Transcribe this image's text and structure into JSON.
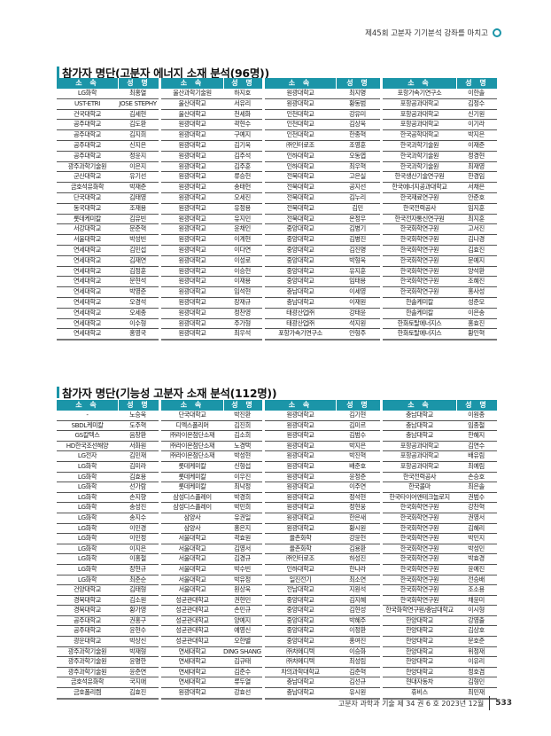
{
  "running_head": "제45회 고분자 기기분석 강좌를 마치고",
  "accent_color": "#1b95a8",
  "header_labels": {
    "affiliation": "소 속",
    "name": "성 명"
  },
  "tables": [
    {
      "title": "참가자 명단(고분자 에너지 소재 분석(96명))",
      "groups": [
        [
          [
            "LG화학",
            "최홍열"
          ],
          [
            "UST-ETRI",
            "JOSE STEPHY"
          ],
          [
            "건국대학교",
            "김세현"
          ],
          [
            "공주대학교",
            "김도환"
          ],
          [
            "공주대학교",
            "김지희"
          ],
          [
            "공주대학교",
            "신지은"
          ],
          [
            "공주대학교",
            "정윤지"
          ],
          [
            "광주과학기술원",
            "이은지"
          ],
          [
            "군산대학교",
            "유기선"
          ],
          [
            "금호석유화학",
            "박재준"
          ],
          [
            "단국대학교",
            "김태영"
          ],
          [
            "동국대학교",
            "조재용"
          ],
          [
            "롯데케미칼",
            "김유빈"
          ],
          [
            "서강대학교",
            "문준혁"
          ],
          [
            "서울대학교",
            "박성빈"
          ],
          [
            "연세대학교",
            "김민섭"
          ],
          [
            "연세대학교",
            "김재연"
          ],
          [
            "연세대학교",
            "김정훈"
          ],
          [
            "연세대학교",
            "문현석"
          ],
          [
            "연세대학교",
            "박영준"
          ],
          [
            "연세대학교",
            "오경석"
          ],
          [
            "연세대학교",
            "오세종"
          ],
          [
            "연세대학교",
            "이수형"
          ],
          [
            "연세대학교",
            "홍영국"
          ]
        ],
        [
          [
            "울산과학기술원",
            "하지호"
          ],
          [
            "울산대학교",
            "서유리"
          ],
          [
            "울산대학교",
            "천세화"
          ],
          [
            "원광대학교",
            "곽현수"
          ],
          [
            "원광대학교",
            "구예지"
          ],
          [
            "원광대학교",
            "김기욱"
          ],
          [
            "원광대학교",
            "김주석"
          ],
          [
            "원광대학교",
            "김주훈"
          ],
          [
            "원광대학교",
            "류승헌"
          ],
          [
            "원광대학교",
            "송태헌"
          ],
          [
            "원광대학교",
            "오세진"
          ],
          [
            "원광대학교",
            "유정용"
          ],
          [
            "원광대학교",
            "유지민"
          ],
          [
            "원광대학교",
            "윤채인"
          ],
          [
            "원광대학교",
            "이계현"
          ],
          [
            "원광대학교",
            "이다연"
          ],
          [
            "원광대학교",
            "이성로"
          ],
          [
            "원광대학교",
            "이승헌"
          ],
          [
            "원광대학교",
            "이재용"
          ],
          [
            "원광대학교",
            "임석현"
          ],
          [
            "원광대학교",
            "장재규"
          ],
          [
            "원광대학교",
            "정찬영"
          ],
          [
            "원광대학교",
            "주가형"
          ],
          [
            "원광대학교",
            "최우석"
          ]
        ],
        [
          [
            "원광대학교",
            "최지명"
          ],
          [
            "원광대학교",
            "황동범"
          ],
          [
            "인천대학교",
            "강유미"
          ],
          [
            "인천대학교",
            "김상욱"
          ],
          [
            "인천대학교",
            "한종혁"
          ],
          [
            "㈜인터로조",
            "조영훈"
          ],
          [
            "인하대학교",
            "오동엽"
          ],
          [
            "인하대학교",
            "최우혁"
          ],
          [
            "전북대학교",
            "고은실"
          ],
          [
            "전북대학교",
            "공지선"
          ],
          [
            "전북대학교",
            "김누리"
          ],
          [
            "전북대학교",
            "김민"
          ],
          [
            "전북대학교",
            "온정우"
          ],
          [
            "중앙대학교",
            "김병기"
          ],
          [
            "중앙대학교",
            "김병진"
          ],
          [
            "중앙대학교",
            "김진명"
          ],
          [
            "중앙대학교",
            "박형욱"
          ],
          [
            "중앙대학교",
            "유지훈"
          ],
          [
            "중앙대학교",
            "임태용"
          ],
          [
            "충남대학교",
            "이세영"
          ],
          [
            "충남대학교",
            "이재원"
          ],
          [
            "태광산업㈜",
            "강태윤"
          ],
          [
            "태광산업㈜",
            "석지원"
          ],
          [
            "포항가속기연구소",
            "안형주"
          ]
        ],
        [
          [
            "포항가속기연구소",
            "이한솔"
          ],
          [
            "포항공과대학교",
            "김정수"
          ],
          [
            "포항공과대학교",
            "신기원"
          ],
          [
            "포항공과대학교",
            "이기라"
          ],
          [
            "한국공학대학교",
            "박지은"
          ],
          [
            "한국과학기술원",
            "이재준"
          ],
          [
            "한국과학기술원",
            "정경현"
          ],
          [
            "한국과학기술원",
            "최재영"
          ],
          [
            "한국생산기술연구원",
            "한경임"
          ],
          [
            "한국에너지공과대학교",
            "서채은"
          ],
          [
            "한국재료연구원",
            "안준호"
          ],
          [
            "한국전력공사",
            "임지훈"
          ],
          [
            "한국전자통신연구원",
            "최지훈"
          ],
          [
            "한국화학연구원",
            "고서진"
          ],
          [
            "한국화학연구원",
            "김나경"
          ],
          [
            "한국화학연구원",
            "김효진"
          ],
          [
            "한국화학연구원",
            "문예지"
          ],
          [
            "한국화학연구원",
            "양석환"
          ],
          [
            "한국화학연구원",
            "조혜진"
          ],
          [
            "한국화학연구원",
            "홍사성"
          ],
          [
            "한솔케미칼",
            "성준모"
          ],
          [
            "한솔케미칼",
            "이은송"
          ],
          [
            "한화토탈에너지스",
            "홍효진"
          ],
          [
            "한화토탈에너지스",
            "황인혁"
          ]
        ]
      ]
    },
    {
      "title": "참가자 명단(기능성 고분자 소재 분석(112명))",
      "groups": [
        [
          [
            "-",
            "노승욱"
          ],
          [
            "SBDL케미칼",
            "도주혁"
          ],
          [
            "GS칼텍스",
            "음창환"
          ],
          [
            "HD한국조선해양",
            "서화원"
          ],
          [
            "LG전자",
            "김민재"
          ],
          [
            "LG화학",
            "김미라"
          ],
          [
            "LG화학",
            "김효용"
          ],
          [
            "LG화학",
            "선가람"
          ],
          [
            "LG화학",
            "손지향"
          ],
          [
            "LG화학",
            "송성진"
          ],
          [
            "LG화학",
            "송지수"
          ],
          [
            "LG화학",
            "이민경"
          ],
          [
            "LG화학",
            "이민정"
          ],
          [
            "LG화학",
            "이지은"
          ],
          [
            "LG화학",
            "이홍철"
          ],
          [
            "LG화학",
            "장현규"
          ],
          [
            "LG화학",
            "최준순"
          ],
          [
            "건양대학교",
            "김태형"
          ],
          [
            "경북대학교",
            "김소원"
          ],
          [
            "경북대학교",
            "황가영"
          ],
          [
            "공주대학교",
            "권홍구"
          ],
          [
            "공주대학교",
            "윤현수"
          ],
          [
            "광운대학교",
            "박상신"
          ],
          [
            "광주과학기술원",
            "박재형"
          ],
          [
            "광주과학기술원",
            "윤명한"
          ],
          [
            "광주과학기술원",
            "윤준연"
          ],
          [
            "금호석유화학",
            "국지애"
          ],
          [
            "금호폴리켐",
            "김효진"
          ]
        ],
        [
          [
            "단국대학교",
            "박진환"
          ],
          [
            "디엑스폴리머",
            "김진희"
          ],
          [
            "㈜라이온첨단소재",
            "김소희"
          ],
          [
            "㈜라이온첨단소재",
            "노경택"
          ],
          [
            "㈜라이온첨단소재",
            "박성현"
          ],
          [
            "롯데케미칼",
            "신형섭"
          ],
          [
            "롯데케미칼",
            "이우진"
          ],
          [
            "롯데케미칼",
            "최낙정"
          ],
          [
            "삼성디스플레이",
            "박경희"
          ],
          [
            "삼성디스플레이",
            "박민희"
          ],
          [
            "삼양사",
            "유권일"
          ],
          [
            "삼양사",
            "홍은지"
          ],
          [
            "서울대학교",
            "곽효원"
          ],
          [
            "서울대학교",
            "김영서"
          ],
          [
            "서울대학교",
            "김경규"
          ],
          [
            "서울대학교",
            "박수빈"
          ],
          [
            "서울대학교",
            "박유정"
          ],
          [
            "서울대학교",
            "원상욱"
          ],
          [
            "성균관대학교",
            "권현민"
          ],
          [
            "성균관대학교",
            "손민규"
          ],
          [
            "성균관대학교",
            "양예지"
          ],
          [
            "성균관대학교",
            "예영신"
          ],
          [
            "성균관대학교",
            "오한별"
          ],
          [
            "연세대학교",
            "DING SHANGXIAN"
          ],
          [
            "연세대학교",
            "김규태"
          ],
          [
            "연세대학교",
            "김준수"
          ],
          [
            "연세대학교",
            "류두열"
          ],
          [
            "원광대학교",
            "강효선"
          ]
        ],
        [
          [
            "원광대학교",
            "김기현"
          ],
          [
            "원광대학교",
            "김미르"
          ],
          [
            "원광대학교",
            "김범수"
          ],
          [
            "원광대학교",
            "박지은"
          ],
          [
            "원광대학교",
            "박진혁"
          ],
          [
            "원광대학교",
            "배준호"
          ],
          [
            "원광대학교",
            "윤정준"
          ],
          [
            "원광대학교",
            "이주연"
          ],
          [
            "원광대학교",
            "정석현"
          ],
          [
            "원광대학교",
            "정현웅"
          ],
          [
            "원광대학교",
            "한은새"
          ],
          [
            "원광대학교",
            "황시원"
          ],
          [
            "율촌화학",
            "강윤헌"
          ],
          [
            "율촌화학",
            "김용환"
          ],
          [
            "㈜인터로조",
            "하성진"
          ],
          [
            "인하대학교",
            "한나라"
          ],
          [
            "일진전기",
            "최소연"
          ],
          [
            "전남대학교",
            "지원석"
          ],
          [
            "중앙대학교",
            "김지혜"
          ],
          [
            "중앙대학교",
            "김현성"
          ],
          [
            "중앙대학교",
            "박혜주"
          ],
          [
            "중앙대학교",
            "이정환"
          ],
          [
            "중앙대학교",
            "홍여진"
          ],
          [
            "㈜차메디텍",
            "이승화"
          ],
          [
            "㈜차메디텍",
            "최성림"
          ],
          [
            "차의과학대학교",
            "김준혁"
          ],
          [
            "충남대학교",
            "김선규"
          ],
          [
            "충남대학교",
            "유시원"
          ]
        ],
        [
          [
            "충남대학교",
            "이원종"
          ],
          [
            "충남대학교",
            "임종철"
          ],
          [
            "충남대학교",
            "한혜지"
          ],
          [
            "포항공과대학교",
            "김연수"
          ],
          [
            "포항공과대학교",
            "배유림"
          ],
          [
            "포항공과대학교",
            "최예림"
          ],
          [
            "한국전력공사",
            "손승호"
          ],
          [
            "한국콜마",
            "최은솔"
          ],
          [
            "한국타이어앤테크놀로지",
            "권범수"
          ],
          [
            "한국화학연구원",
            "강찬혁"
          ],
          [
            "한국화학연구원",
            "권영서"
          ],
          [
            "한국화학연구원",
            "김혜리"
          ],
          [
            "한국화학연구원",
            "박민지"
          ],
          [
            "한국화학연구원",
            "박성민"
          ],
          [
            "한국화학연구원",
            "박효경"
          ],
          [
            "한국화학연구원",
            "윤예진"
          ],
          [
            "한국화학연구원",
            "전승배"
          ],
          [
            "한국화학연구원",
            "조소용"
          ],
          [
            "한국화학연구원",
            "채윤미"
          ],
          [
            "한국화학연구원/충남대학교",
            "이시형"
          ],
          [
            "한양대학교",
            "강영출"
          ],
          [
            "한양대학교",
            "김상호"
          ],
          [
            "한양대학교",
            "문호준"
          ],
          [
            "한양대학교",
            "위정재"
          ],
          [
            "한양대학교",
            "이유리"
          ],
          [
            "한양대학교",
            "정호겸"
          ],
          [
            "현대자동차",
            "김형민"
          ],
          [
            "휴비스",
            "최민재"
          ]
        ]
      ]
    }
  ],
  "footer": {
    "journal": "고분자 과학과 기술 제 34 권 6 호 2023년 12월",
    "page": "533"
  }
}
